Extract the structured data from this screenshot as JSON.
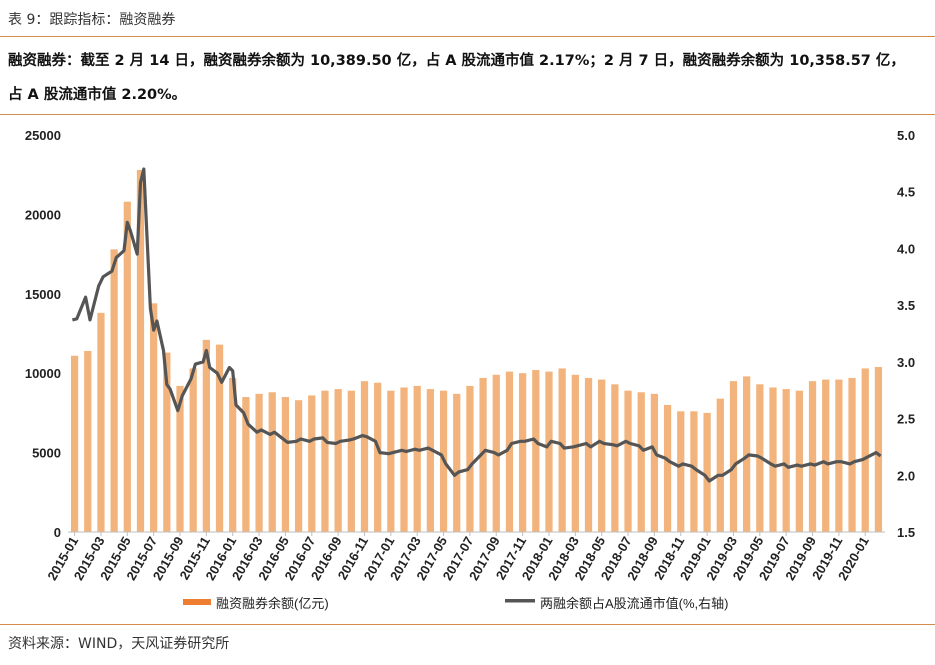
{
  "header": {
    "title": "表 9：跟踪指标：融资融券",
    "summary_line1": "融资融券：截至 2 月 14 日，融资融券余额为 10,389.50 亿，占 A 股流通市值 2.17%；2 月 7 日，融资融券余额为 10,358.57 亿，",
    "summary_line2": "占 A 股流通市值 2.20%。"
  },
  "footer": {
    "source": "资料来源：WIND，天风证券研究所"
  },
  "colors": {
    "bar": "#f2b47c",
    "line": "#555555",
    "rule": "#d28c4e",
    "legend_bar": "#ed7d31"
  },
  "chart_data": {
    "type": "bar+line",
    "title": "",
    "xlabel": "",
    "ylabel_left": "",
    "ylabel_right": "",
    "y_left_lim": [
      0,
      25000
    ],
    "y_left_ticks": [
      "0",
      "5000",
      "10000",
      "15000",
      "20000",
      "25000"
    ],
    "y_right_lim": [
      1.5,
      5.0
    ],
    "y_right_ticks": [
      "1.5",
      "2.0",
      "2.5",
      "3.0",
      "3.5",
      "4.0",
      "4.5",
      "5.0"
    ],
    "x_ticks": [
      "2015-01",
      "2015-03",
      "2015-05",
      "2015-07",
      "2015-09",
      "2015-11",
      "2016-01",
      "2016-03",
      "2016-05",
      "2016-07",
      "2016-09",
      "2016-11",
      "2017-01",
      "2017-03",
      "2017-05",
      "2017-07",
      "2017-09",
      "2017-11",
      "2018-01",
      "2018-03",
      "2018-05",
      "2018-07",
      "2018-09",
      "2018-11",
      "2019-01",
      "2019-03",
      "2019-05",
      "2019-07",
      "2019-09",
      "2019-11",
      "2020-01"
    ],
    "grid": false,
    "legend_position": "bottom",
    "series": [
      {
        "name": "融资融券余额(亿元)",
        "kind": "bar",
        "axis": "left",
        "x": [
          "2015-01",
          "2015-02",
          "2015-03",
          "2015-04",
          "2015-05",
          "2015-06",
          "2015-07",
          "2015-08",
          "2015-09",
          "2015-10",
          "2015-11",
          "2015-12",
          "2016-01",
          "2016-02",
          "2016-03",
          "2016-04",
          "2016-05",
          "2016-06",
          "2016-07",
          "2016-08",
          "2016-09",
          "2016-10",
          "2016-11",
          "2016-12",
          "2017-01",
          "2017-02",
          "2017-03",
          "2017-04",
          "2017-05",
          "2017-06",
          "2017-07",
          "2017-08",
          "2017-09",
          "2017-10",
          "2017-11",
          "2017-12",
          "2018-01",
          "2018-02",
          "2018-03",
          "2018-04",
          "2018-05",
          "2018-06",
          "2018-07",
          "2018-08",
          "2018-09",
          "2018-10",
          "2018-11",
          "2018-12",
          "2019-01",
          "2019-02",
          "2019-03",
          "2019-04",
          "2019-05",
          "2019-06",
          "2019-07",
          "2019-08",
          "2019-09",
          "2019-10",
          "2019-11",
          "2019-12",
          "2020-01",
          "2020-02"
        ],
        "values": [
          11100,
          11400,
          13800,
          17800,
          20800,
          22800,
          14400,
          11300,
          9200,
          10300,
          12100,
          11800,
          9700,
          8500,
          8700,
          8800,
          8500,
          8300,
          8600,
          8900,
          9000,
          8900,
          9500,
          9400,
          8900,
          9100,
          9200,
          9000,
          8900,
          8700,
          9200,
          9700,
          9900,
          10100,
          10000,
          10200,
          10100,
          10300,
          9900,
          9700,
          9600,
          9300,
          8900,
          8800,
          8700,
          8000,
          7600,
          7600,
          7500,
          8400,
          9500,
          9800,
          9300,
          9100,
          9000,
          8900,
          9500,
          9600,
          9600,
          9700,
          10300,
          10389.5
        ]
      },
      {
        "name": "两融余额占A股流通市值(%,右轴)",
        "kind": "line",
        "axis": "right",
        "x": [
          "2015-01",
          "2015-01",
          "2015-02",
          "2015-02",
          "2015-03",
          "2015-03",
          "2015-04",
          "2015-04",
          "2015-05",
          "2015-05",
          "2015-05",
          "2015-06",
          "2015-06",
          "2015-06",
          "2015-07",
          "2015-07",
          "2015-07",
          "2015-08",
          "2015-08",
          "2015-08",
          "2015-09",
          "2015-09",
          "2015-10",
          "2015-10",
          "2015-11",
          "2015-11",
          "2015-11",
          "2015-12",
          "2015-12",
          "2016-01",
          "2016-01",
          "2016-01",
          "2016-02",
          "2016-02",
          "2016-03",
          "2016-03",
          "2016-04",
          "2016-04",
          "2016-05",
          "2016-05",
          "2016-06",
          "2016-06",
          "2016-07",
          "2016-07",
          "2016-08",
          "2016-08",
          "2016-09",
          "2016-09",
          "2016-10",
          "2016-10",
          "2016-11",
          "2016-11",
          "2016-12",
          "2016-12",
          "2017-01",
          "2017-01",
          "2017-02",
          "2017-02",
          "2017-03",
          "2017-03",
          "2017-04",
          "2017-04",
          "2017-05",
          "2017-05",
          "2017-06",
          "2017-06",
          "2017-07",
          "2017-07",
          "2017-08",
          "2017-08",
          "2017-09",
          "2017-09",
          "2017-10",
          "2017-10",
          "2017-11",
          "2017-11",
          "2017-12",
          "2017-12",
          "2018-01",
          "2018-01",
          "2018-02",
          "2018-02",
          "2018-03",
          "2018-03",
          "2018-04",
          "2018-04",
          "2018-05",
          "2018-05",
          "2018-06",
          "2018-06",
          "2018-07",
          "2018-07",
          "2018-08",
          "2018-08",
          "2018-09",
          "2018-09",
          "2018-10",
          "2018-10",
          "2018-11",
          "2018-11",
          "2018-12",
          "2018-12",
          "2019-01",
          "2019-01",
          "2019-02",
          "2019-02",
          "2019-03",
          "2019-03",
          "2019-04",
          "2019-04",
          "2019-05",
          "2019-05",
          "2019-06",
          "2019-06",
          "2019-07",
          "2019-07",
          "2019-08",
          "2019-08",
          "2019-09",
          "2019-09",
          "2019-10",
          "2019-10",
          "2019-11",
          "2019-11",
          "2019-12",
          "2019-12",
          "2020-01",
          "2020-01",
          "2020-02",
          "2020-02"
        ],
        "values": [
          3.37,
          3.38,
          3.57,
          3.37,
          3.67,
          3.75,
          3.8,
          3.92,
          3.98,
          4.23,
          4.15,
          3.95,
          4.58,
          4.7,
          3.47,
          3.28,
          3.36,
          3.1,
          2.8,
          2.76,
          2.57,
          2.7,
          2.85,
          2.98,
          3.0,
          3.1,
          2.95,
          2.9,
          2.82,
          2.95,
          2.92,
          2.62,
          2.55,
          2.45,
          2.38,
          2.4,
          2.36,
          2.38,
          2.32,
          2.29,
          2.3,
          2.32,
          2.3,
          2.32,
          2.33,
          2.29,
          2.28,
          2.3,
          2.31,
          2.32,
          2.35,
          2.34,
          2.3,
          2.2,
          2.19,
          2.2,
          2.22,
          2.21,
          2.23,
          2.22,
          2.24,
          2.22,
          2.18,
          2.1,
          2.0,
          2.03,
          2.05,
          2.1,
          2.18,
          2.22,
          2.2,
          2.18,
          2.22,
          2.28,
          2.3,
          2.3,
          2.32,
          2.28,
          2.25,
          2.3,
          2.28,
          2.24,
          2.25,
          2.26,
          2.28,
          2.25,
          2.3,
          2.28,
          2.27,
          2.26,
          2.3,
          2.28,
          2.26,
          2.22,
          2.25,
          2.18,
          2.15,
          2.12,
          2.08,
          2.1,
          2.08,
          2.05,
          2.0,
          1.95,
          2.0,
          2.0,
          2.05,
          2.1,
          2.15,
          2.18,
          2.17,
          2.15,
          2.1,
          2.08,
          2.1,
          2.07,
          2.09,
          2.08,
          2.1,
          2.09,
          2.12,
          2.1,
          2.12,
          2.12,
          2.1,
          2.12,
          2.14,
          2.16,
          2.2,
          2.17
        ]
      }
    ]
  }
}
